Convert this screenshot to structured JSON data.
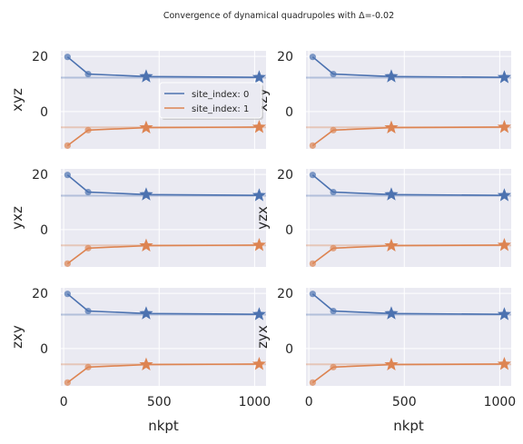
{
  "figure": {
    "suptitle": "Convergence of dynamical quadrupoles with Δ=-0.02",
    "xlabel": "nkpt",
    "xticks": [
      0,
      500,
      1000
    ],
    "yticks": [
      0,
      20
    ]
  },
  "legend": {
    "entries": [
      "site_index: 0",
      "site_index: 1"
    ],
    "location": "center-right of first panel"
  },
  "colors": {
    "series0": "#4c72b0",
    "series1": "#dd8452",
    "axes_bg": "#eaeaf2",
    "grid": "#ffffff"
  },
  "chart_data": {
    "type": "line",
    "grid": true,
    "xlim": [
      -15,
      1060
    ],
    "ylim": [
      -13.5,
      22
    ],
    "panels": [
      {
        "ylabel": "xyz",
        "series": [
          {
            "name": "site_index: 0",
            "x": [
              20,
              128,
              432,
              1024
            ],
            "y": [
              19.8,
              13.6,
              12.7,
              12.4
            ],
            "converged": 12.3
          },
          {
            "name": "site_index: 1",
            "x": [
              20,
              128,
              432,
              1024
            ],
            "y": [
              -12.3,
              -6.7,
              -5.8,
              -5.6
            ],
            "converged": -5.7
          }
        ]
      },
      {
        "ylabel": "xzy",
        "series": [
          {
            "name": "site_index: 0",
            "x": [
              20,
              128,
              432,
              1024
            ],
            "y": [
              19.8,
              13.6,
              12.7,
              12.4
            ],
            "converged": 12.3
          },
          {
            "name": "site_index: 1",
            "x": [
              20,
              128,
              432,
              1024
            ],
            "y": [
              -12.3,
              -6.7,
              -5.8,
              -5.6
            ],
            "converged": -5.7
          }
        ]
      },
      {
        "ylabel": "yxz",
        "series": [
          {
            "name": "site_index: 0",
            "x": [
              20,
              128,
              432,
              1024
            ],
            "y": [
              19.8,
              13.6,
              12.7,
              12.4
            ],
            "converged": 12.3
          },
          {
            "name": "site_index: 1",
            "x": [
              20,
              128,
              432,
              1024
            ],
            "y": [
              -12.3,
              -6.7,
              -5.8,
              -5.6
            ],
            "converged": -5.7
          }
        ]
      },
      {
        "ylabel": "yzx",
        "series": [
          {
            "name": "site_index: 0",
            "x": [
              20,
              128,
              432,
              1024
            ],
            "y": [
              19.8,
              13.6,
              12.7,
              12.4
            ],
            "converged": 12.3
          },
          {
            "name": "site_index: 1",
            "x": [
              20,
              128,
              432,
              1024
            ],
            "y": [
              -12.3,
              -6.7,
              -5.8,
              -5.6
            ],
            "converged": -5.7
          }
        ]
      },
      {
        "ylabel": "zxy",
        "series": [
          {
            "name": "site_index: 0",
            "x": [
              20,
              128,
              432,
              1024
            ],
            "y": [
              19.8,
              13.6,
              12.7,
              12.4
            ],
            "converged": 12.3
          },
          {
            "name": "site_index: 1",
            "x": [
              20,
              128,
              432,
              1024
            ],
            "y": [
              -12.3,
              -6.7,
              -5.8,
              -5.6
            ],
            "converged": -5.7
          }
        ]
      },
      {
        "ylabel": "zyx",
        "series": [
          {
            "name": "site_index: 0",
            "x": [
              20,
              128,
              432,
              1024
            ],
            "y": [
              19.8,
              13.6,
              12.7,
              12.4
            ],
            "converged": 12.3
          },
          {
            "name": "site_index: 1",
            "x": [
              20,
              128,
              432,
              1024
            ],
            "y": [
              -12.3,
              -6.7,
              -5.8,
              -5.6
            ],
            "converged": -5.7
          }
        ]
      }
    ]
  }
}
